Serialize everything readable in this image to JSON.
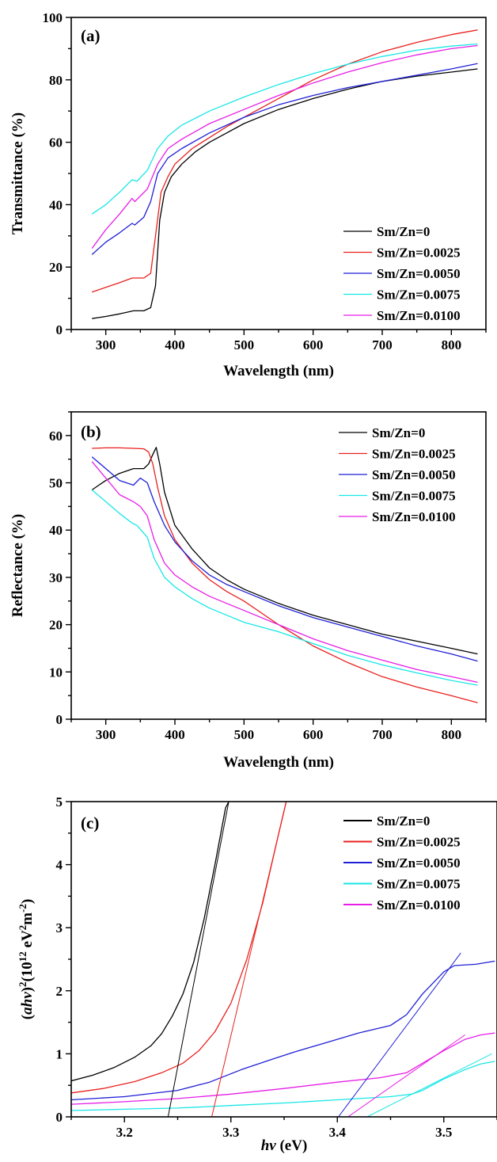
{
  "series_colors": {
    "Sm/Zn=0": "#000000",
    "Sm/Zn=0.0025": "#e8211d",
    "Sm/Zn=0.0050": "#1f1fd6",
    "Sm/Zn=0.0075": "#19e6e6",
    "Sm/Zn=0.0100": "#e61ee6"
  },
  "chart_data": [
    {
      "panel_label": "(a)",
      "type": "line",
      "xlabel": "Wavelength (nm)",
      "ylabel": "Transmittance (%)",
      "xlim": [
        250,
        850
      ],
      "ylim": [
        0,
        100
      ],
      "xticks": [
        300,
        400,
        500,
        600,
        700,
        800
      ],
      "yticks": [
        0,
        20,
        40,
        60,
        80,
        100
      ],
      "legend_position": "bottom-right",
      "series": [
        {
          "name": "Sm/Zn=0",
          "x": [
            280,
            300,
            320,
            340,
            355,
            365,
            372,
            378,
            385,
            395,
            410,
            430,
            450,
            475,
            500,
            550,
            600,
            650,
            700,
            750,
            800,
            838
          ],
          "y": [
            3.5,
            4.2,
            5.0,
            6.0,
            6.0,
            7.0,
            14,
            35,
            44,
            49,
            53,
            57,
            60,
            63,
            66,
            70.5,
            74,
            77,
            79.5,
            81.2,
            82.5,
            83.5
          ]
        },
        {
          "name": "Sm/Zn=0.0025",
          "x": [
            280,
            300,
            320,
            338,
            355,
            365,
            372,
            380,
            390,
            400,
            425,
            450,
            475,
            500,
            550,
            600,
            650,
            700,
            750,
            800,
            838
          ],
          "y": [
            12,
            13.5,
            15,
            16.5,
            16.5,
            18,
            30,
            44,
            49,
            53,
            58,
            61.5,
            65,
            68,
            74,
            80,
            85,
            89,
            92,
            94.5,
            96
          ]
        },
        {
          "name": "Sm/Zn=0.0050",
          "x": [
            280,
            300,
            320,
            338,
            342,
            355,
            365,
            375,
            390,
            410,
            450,
            500,
            550,
            600,
            650,
            700,
            750,
            800,
            838
          ],
          "y": [
            24,
            28,
            31,
            34,
            33.5,
            36,
            41,
            50,
            55,
            58,
            63,
            68,
            72,
            75,
            77.5,
            79.5,
            81.5,
            83.5,
            85.2
          ]
        },
        {
          "name": "Sm/Zn=0.0075",
          "x": [
            280,
            300,
            320,
            338,
            345,
            360,
            375,
            390,
            410,
            450,
            500,
            550,
            600,
            650,
            700,
            750,
            800,
            838
          ],
          "y": [
            37,
            40,
            44,
            48,
            47.5,
            51,
            58,
            62,
            65.5,
            70,
            74.5,
            78.5,
            82,
            85,
            87.5,
            89.5,
            90.8,
            91.5
          ]
        },
        {
          "name": "Sm/Zn=0.0100",
          "x": [
            280,
            300,
            320,
            338,
            342,
            360,
            375,
            390,
            410,
            450,
            500,
            550,
            600,
            650,
            700,
            750,
            800,
            838
          ],
          "y": [
            26,
            32,
            37,
            42,
            41,
            45,
            53,
            58,
            61,
            66,
            70.5,
            75,
            79,
            82.5,
            85.5,
            88,
            90,
            91
          ]
        }
      ]
    },
    {
      "panel_label": "(b)",
      "type": "line",
      "xlabel": "Wavelength (nm)",
      "ylabel": "Reflectance (%)",
      "xlim": [
        250,
        850
      ],
      "ylim": [
        0,
        65
      ],
      "xticks": [
        300,
        400,
        500,
        600,
        700,
        800
      ],
      "yticks": [
        0,
        10,
        20,
        30,
        40,
        50,
        60
      ],
      "legend_position": "top-right",
      "series": [
        {
          "name": "Sm/Zn=0",
          "x": [
            280,
            290,
            300,
            320,
            340,
            355,
            362,
            368,
            373,
            378,
            385,
            400,
            425,
            450,
            475,
            500,
            550,
            600,
            650,
            700,
            750,
            800,
            838
          ],
          "y": [
            48.5,
            49.5,
            50.5,
            52,
            53,
            53,
            54,
            56,
            57.5,
            54,
            48,
            41,
            36,
            32,
            29.5,
            27.5,
            24.5,
            22,
            20,
            18,
            16.5,
            15,
            13.8
          ]
        },
        {
          "name": "Sm/Zn=0.0025",
          "x": [
            280,
            300,
            320,
            340,
            355,
            362,
            368,
            375,
            385,
            400,
            425,
            450,
            475,
            500,
            550,
            600,
            650,
            700,
            750,
            800,
            838
          ],
          "y": [
            57.3,
            57.4,
            57.4,
            57.3,
            57.2,
            56.5,
            54,
            49,
            43,
            38,
            33,
            29.5,
            27,
            25,
            20,
            15.5,
            12,
            9,
            6.8,
            5,
            3.5
          ]
        },
        {
          "name": "Sm/Zn=0.0050",
          "x": [
            280,
            300,
            320,
            340,
            350,
            360,
            370,
            385,
            400,
            425,
            450,
            475,
            500,
            550,
            600,
            650,
            700,
            750,
            800,
            838
          ],
          "y": [
            55.5,
            53,
            50.5,
            49.5,
            51,
            50,
            46,
            41,
            37.5,
            33.5,
            30.5,
            28.5,
            27,
            24,
            21.5,
            19.5,
            17.5,
            15.5,
            13.8,
            12.3
          ]
        },
        {
          "name": "Sm/Zn=0.0075",
          "x": [
            280,
            300,
            320,
            338,
            345,
            360,
            370,
            385,
            400,
            425,
            450,
            475,
            500,
            550,
            600,
            650,
            700,
            750,
            800,
            838
          ],
          "y": [
            48.5,
            46,
            43.5,
            41.5,
            41,
            38.5,
            34,
            30,
            28,
            25.5,
            23.5,
            22,
            20.5,
            18.5,
            16,
            13.5,
            11.5,
            9.8,
            8.2,
            7.2
          ]
        },
        {
          "name": "Sm/Zn=0.0100",
          "x": [
            280,
            300,
            320,
            340,
            350,
            360,
            370,
            385,
            400,
            425,
            450,
            475,
            500,
            550,
            600,
            650,
            700,
            750,
            800,
            838
          ],
          "y": [
            54.5,
            51,
            47.5,
            46,
            45,
            43,
            38,
            33,
            30.5,
            28,
            26,
            24.5,
            23,
            20,
            17,
            14.5,
            12.5,
            10.5,
            9,
            7.8
          ]
        }
      ]
    },
    {
      "panel_label": "(c)",
      "type": "line",
      "xlabel": "hv (eV)",
      "ylabel": "(ahv)2(1012 eV2m-2)",
      "xlim": [
        3.15,
        3.55
      ],
      "ylim": [
        0,
        5
      ],
      "xticks": [
        3.2,
        3.3,
        3.4,
        3.5
      ],
      "yticks": [
        0,
        1,
        2,
        3,
        4,
        5
      ],
      "legend_position": "top-right",
      "series": [
        {
          "name": "Sm/Zn=0",
          "x": [
            3.15,
            3.17,
            3.19,
            3.21,
            3.225,
            3.235,
            3.245,
            3.255,
            3.265,
            3.275,
            3.285,
            3.295,
            3.298
          ],
          "y": [
            0.57,
            0.66,
            0.78,
            0.95,
            1.13,
            1.32,
            1.6,
            1.95,
            2.45,
            3.15,
            4.0,
            4.9,
            5.0
          ]
        },
        {
          "name": "Sm/Zn=0.0025",
          "x": [
            3.15,
            3.18,
            3.21,
            3.235,
            3.255,
            3.27,
            3.285,
            3.3,
            3.315,
            3.33,
            3.345,
            3.352
          ],
          "y": [
            0.38,
            0.45,
            0.56,
            0.7,
            0.85,
            1.05,
            1.35,
            1.8,
            2.5,
            3.4,
            4.5,
            5.0
          ]
        },
        {
          "name": "Sm/Zn=0.0050",
          "x": [
            3.15,
            3.2,
            3.25,
            3.28,
            3.31,
            3.34,
            3.36,
            3.39,
            3.42,
            3.45,
            3.465,
            3.48,
            3.5,
            3.51,
            3.53,
            3.548
          ],
          "y": [
            0.27,
            0.32,
            0.42,
            0.55,
            0.75,
            0.92,
            1.03,
            1.18,
            1.33,
            1.45,
            1.62,
            1.95,
            2.3,
            2.4,
            2.42,
            2.47
          ]
        },
        {
          "name": "Sm/Zn=0.0075",
          "x": [
            3.15,
            3.2,
            3.25,
            3.3,
            3.35,
            3.4,
            3.45,
            3.47,
            3.48,
            3.5,
            3.52,
            3.535,
            3.548
          ],
          "y": [
            0.1,
            0.12,
            0.14,
            0.18,
            0.22,
            0.27,
            0.32,
            0.36,
            0.42,
            0.6,
            0.75,
            0.84,
            0.88
          ]
        },
        {
          "name": "Sm/Zn=0.0100",
          "x": [
            3.15,
            3.2,
            3.25,
            3.3,
            3.35,
            3.4,
            3.44,
            3.465,
            3.48,
            3.5,
            3.52,
            3.535,
            3.548
          ],
          "y": [
            0.2,
            0.24,
            0.29,
            0.36,
            0.45,
            0.55,
            0.62,
            0.7,
            0.85,
            1.05,
            1.23,
            1.3,
            1.33
          ]
        }
      ],
      "fit_lines": [
        {
          "series": "Sm/Zn=0",
          "x": [
            3.241,
            3.298
          ],
          "y": [
            0,
            5.0
          ]
        },
        {
          "series": "Sm/Zn=0.0025",
          "x": [
            3.282,
            3.352
          ],
          "y": [
            0,
            5.0
          ]
        },
        {
          "series": "Sm/Zn=0.0050",
          "x": [
            3.401,
            3.516
          ],
          "y": [
            0,
            2.6
          ]
        },
        {
          "series": "Sm/Zn=0.0075",
          "x": [
            3.428,
            3.545
          ],
          "y": [
            0,
            1.0
          ]
        },
        {
          "series": "Sm/Zn=0.0100",
          "x": [
            3.41,
            3.52
          ],
          "y": [
            0,
            1.3
          ]
        }
      ]
    }
  ]
}
